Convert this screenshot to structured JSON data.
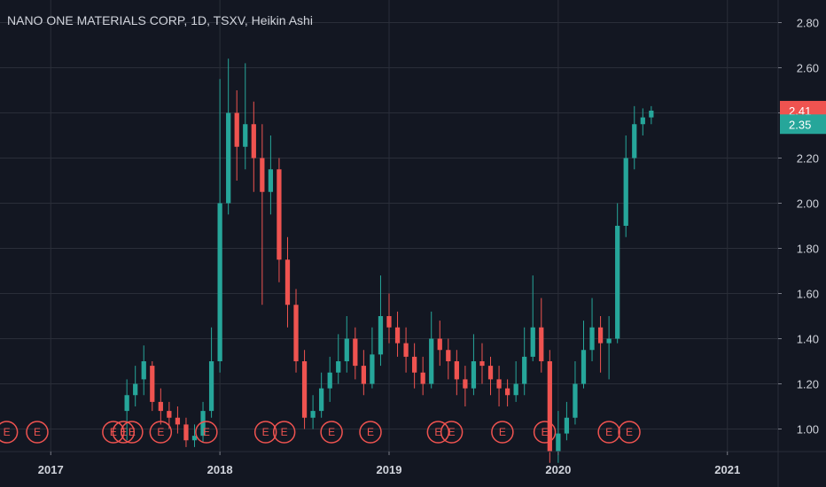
{
  "chart_data": {
    "type": "candlestick",
    "title": "NANO ONE MATERIALS CORP, 1D, TSXV, Heikin Ashi",
    "ylim": [
      0.9,
      2.9
    ],
    "y_ticks": [
      "2.80",
      "2.60",
      "2.40",
      "2.20",
      "2.00",
      "1.80",
      "1.60",
      "1.40",
      "1.20",
      "1.00"
    ],
    "x_ticks": [
      "2017",
      "2018",
      "2019",
      "2020",
      "2021"
    ],
    "x_range": [
      2016.7,
      2021.3
    ],
    "grid": true,
    "price_badges": [
      {
        "label": "2.41",
        "value": 2.41,
        "color": "#ef5350"
      },
      {
        "label": "2.35",
        "value": 2.35,
        "color": "#26a69a"
      }
    ],
    "earnings_marker_label": "E",
    "earnings_dates": [
      2016.74,
      2016.92,
      2017.37,
      2017.43,
      2017.48,
      2017.65,
      2017.92,
      2018.27,
      2018.38,
      2018.66,
      2018.89,
      2019.29,
      2019.37,
      2019.67,
      2019.92,
      2020.3,
      2020.42
    ],
    "series": [
      {
        "up_color": "#26a69a",
        "down_color": "#ef5350",
        "x": [
          2017.45,
          2017.5,
          2017.55,
          2017.6,
          2017.65,
          2017.7,
          2017.75,
          2017.8,
          2017.85,
          2017.9,
          2017.95,
          2018.0,
          2018.05,
          2018.1,
          2018.15,
          2018.2,
          2018.25,
          2018.3,
          2018.35,
          2018.4,
          2018.45,
          2018.5,
          2018.55,
          2018.6,
          2018.65,
          2018.7,
          2018.75,
          2018.8,
          2018.85,
          2018.9,
          2018.95,
          2019.0,
          2019.05,
          2019.1,
          2019.15,
          2019.2,
          2019.25,
          2019.3,
          2019.35,
          2019.4,
          2019.45,
          2019.5,
          2019.55,
          2019.6,
          2019.65,
          2019.7,
          2019.75,
          2019.8,
          2019.85,
          2019.9,
          2019.95,
          2020.0,
          2020.05,
          2020.1,
          2020.15,
          2020.2,
          2020.25,
          2020.3,
          2020.35,
          2020.4,
          2020.45,
          2020.5,
          2020.55
        ],
        "close": [
          1.15,
          1.2,
          1.3,
          1.12,
          1.08,
          1.05,
          1.02,
          0.95,
          0.97,
          1.08,
          1.3,
          2.0,
          2.4,
          2.25,
          2.35,
          2.2,
          2.05,
          2.15,
          1.75,
          1.55,
          1.3,
          1.05,
          1.08,
          1.18,
          1.25,
          1.3,
          1.4,
          1.28,
          1.2,
          1.33,
          1.5,
          1.45,
          1.38,
          1.32,
          1.25,
          1.2,
          1.4,
          1.35,
          1.3,
          1.22,
          1.18,
          1.3,
          1.28,
          1.22,
          1.18,
          1.15,
          1.2,
          1.32,
          1.45,
          1.3,
          0.9,
          0.98,
          1.05,
          1.2,
          1.35,
          1.45,
          1.38,
          1.4,
          1.9,
          2.2,
          2.35,
          2.38,
          2.41
        ],
        "open": [
          1.08,
          1.15,
          1.22,
          1.28,
          1.12,
          1.08,
          1.05,
          1.02,
          0.95,
          0.97,
          1.08,
          1.3,
          2.0,
          2.4,
          2.25,
          2.35,
          2.2,
          2.05,
          2.15,
          1.75,
          1.55,
          1.3,
          1.05,
          1.08,
          1.18,
          1.25,
          1.3,
          1.4,
          1.28,
          1.2,
          1.33,
          1.5,
          1.45,
          1.38,
          1.32,
          1.25,
          1.2,
          1.4,
          1.35,
          1.3,
          1.22,
          1.18,
          1.3,
          1.28,
          1.22,
          1.18,
          1.15,
          1.2,
          1.32,
          1.45,
          1.3,
          0.9,
          0.98,
          1.05,
          1.2,
          1.35,
          1.45,
          1.38,
          1.4,
          1.9,
          2.2,
          2.35,
          2.38
        ],
        "high": [
          1.22,
          1.28,
          1.37,
          1.3,
          1.18,
          1.12,
          1.1,
          1.05,
          1.02,
          1.12,
          1.45,
          2.55,
          2.64,
          2.5,
          2.62,
          2.45,
          2.35,
          2.3,
          2.2,
          1.85,
          1.62,
          1.35,
          1.15,
          1.25,
          1.32,
          1.42,
          1.5,
          1.45,
          1.35,
          1.45,
          1.68,
          1.6,
          1.52,
          1.45,
          1.38,
          1.32,
          1.52,
          1.48,
          1.4,
          1.35,
          1.28,
          1.42,
          1.38,
          1.32,
          1.28,
          1.22,
          1.3,
          1.45,
          1.68,
          1.58,
          1.35,
          1.08,
          1.12,
          1.3,
          1.48,
          1.58,
          1.5,
          1.5,
          2.0,
          2.3,
          2.43,
          2.42,
          2.43
        ],
        "low": [
          0.95,
          1.1,
          1.15,
          1.08,
          1.02,
          1.0,
          0.98,
          0.92,
          0.92,
          0.94,
          1.05,
          1.25,
          1.95,
          2.1,
          2.15,
          2.05,
          1.55,
          1.95,
          1.65,
          1.45,
          1.25,
          1.0,
          1.0,
          1.05,
          1.12,
          1.2,
          1.25,
          1.22,
          1.15,
          1.18,
          1.28,
          1.38,
          1.32,
          1.25,
          1.18,
          1.15,
          1.18,
          1.28,
          1.22,
          1.15,
          1.1,
          1.15,
          1.2,
          1.15,
          1.1,
          1.1,
          1.12,
          1.15,
          1.3,
          1.25,
          0.85,
          0.85,
          0.95,
          1.02,
          1.18,
          1.3,
          1.25,
          1.22,
          1.38,
          1.85,
          2.15,
          2.3,
          2.35
        ]
      }
    ]
  }
}
